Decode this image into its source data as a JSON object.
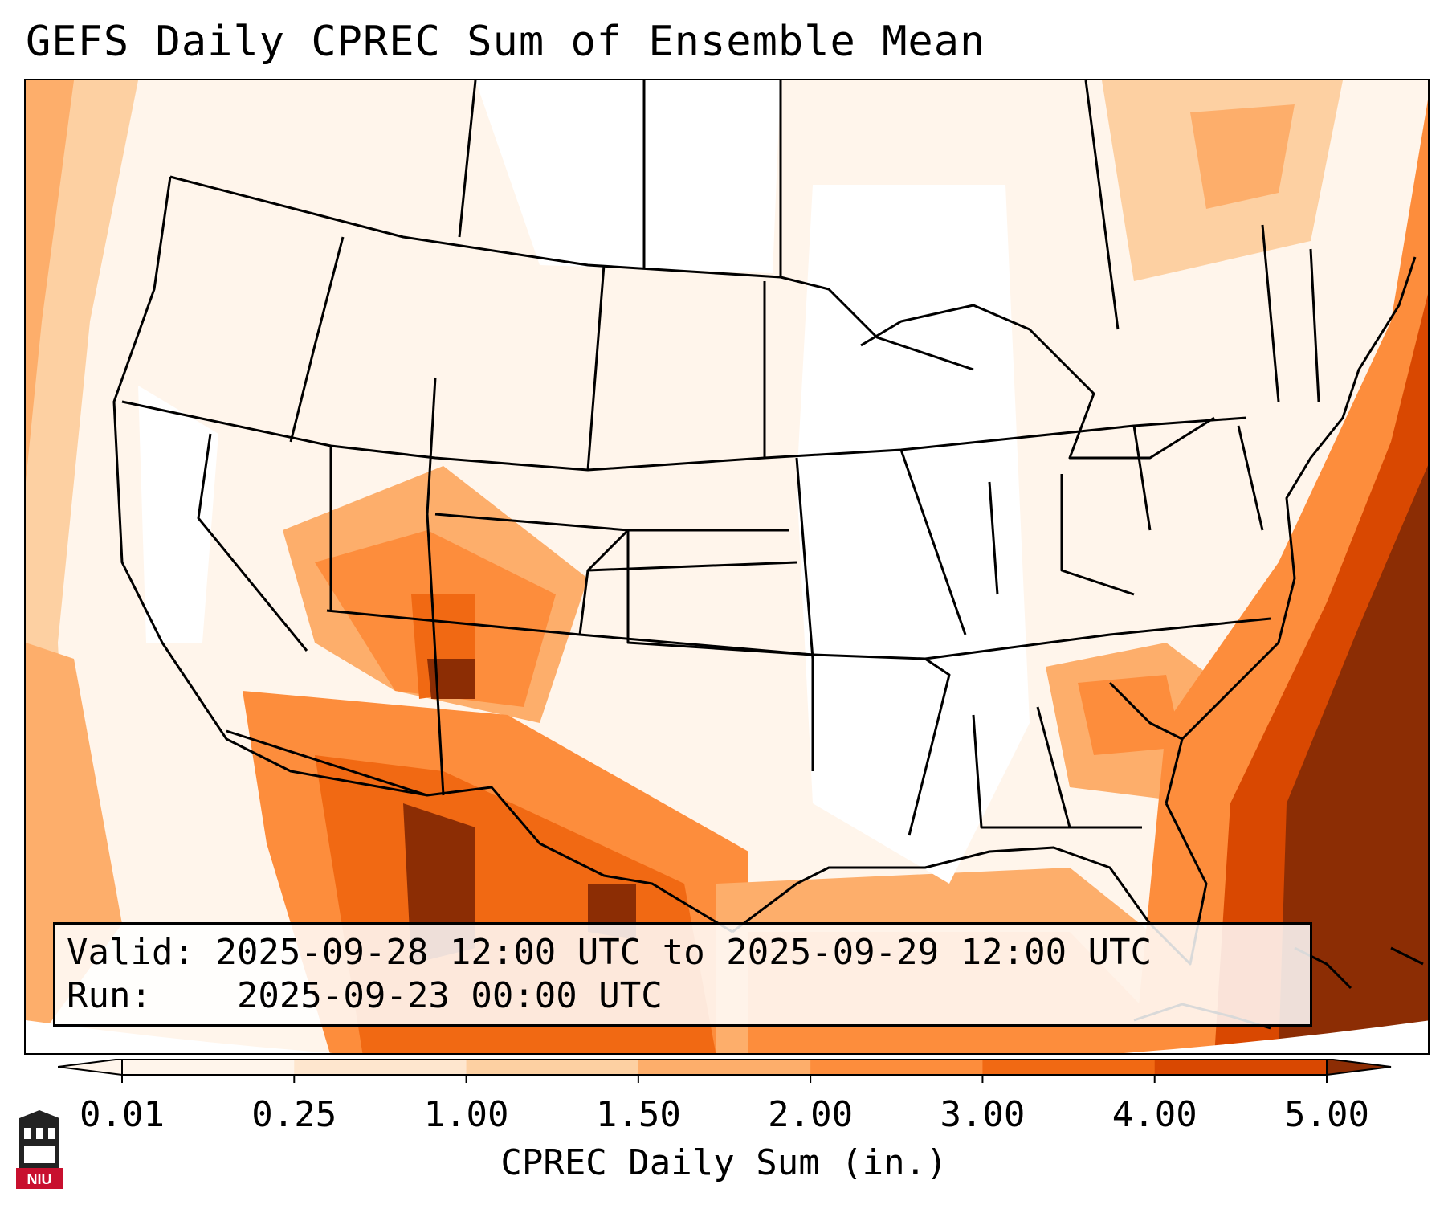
{
  "title": "GEFS Daily CPREC Sum of Ensemble Mean",
  "info": {
    "valid_label": "Valid:",
    "valid_value": "2025-09-28 12:00 UTC to 2025-09-29 12:00 UTC",
    "run_label": "Run:",
    "run_value": "2025-09-23 00:00 UTC"
  },
  "colorbar": {
    "label": "CPREC Daily Sum (in.)",
    "ticks": [
      "0.01",
      "0.25",
      "1.00",
      "1.50",
      "2.00",
      "3.00",
      "4.00",
      "5.00"
    ],
    "colors": [
      "#fff5eb",
      "#fee6ce",
      "#fdd0a2",
      "#fdae6b",
      "#fd8d3c",
      "#f16913",
      "#d94801",
      "#8c2d04"
    ],
    "extend": "both"
  },
  "map": {
    "region": "Contiguous United States",
    "colors": {
      "land_background": "#ffffff",
      "borders": "#000000"
    }
  },
  "logo": {
    "text": "NIU",
    "color": "#c8102e"
  }
}
